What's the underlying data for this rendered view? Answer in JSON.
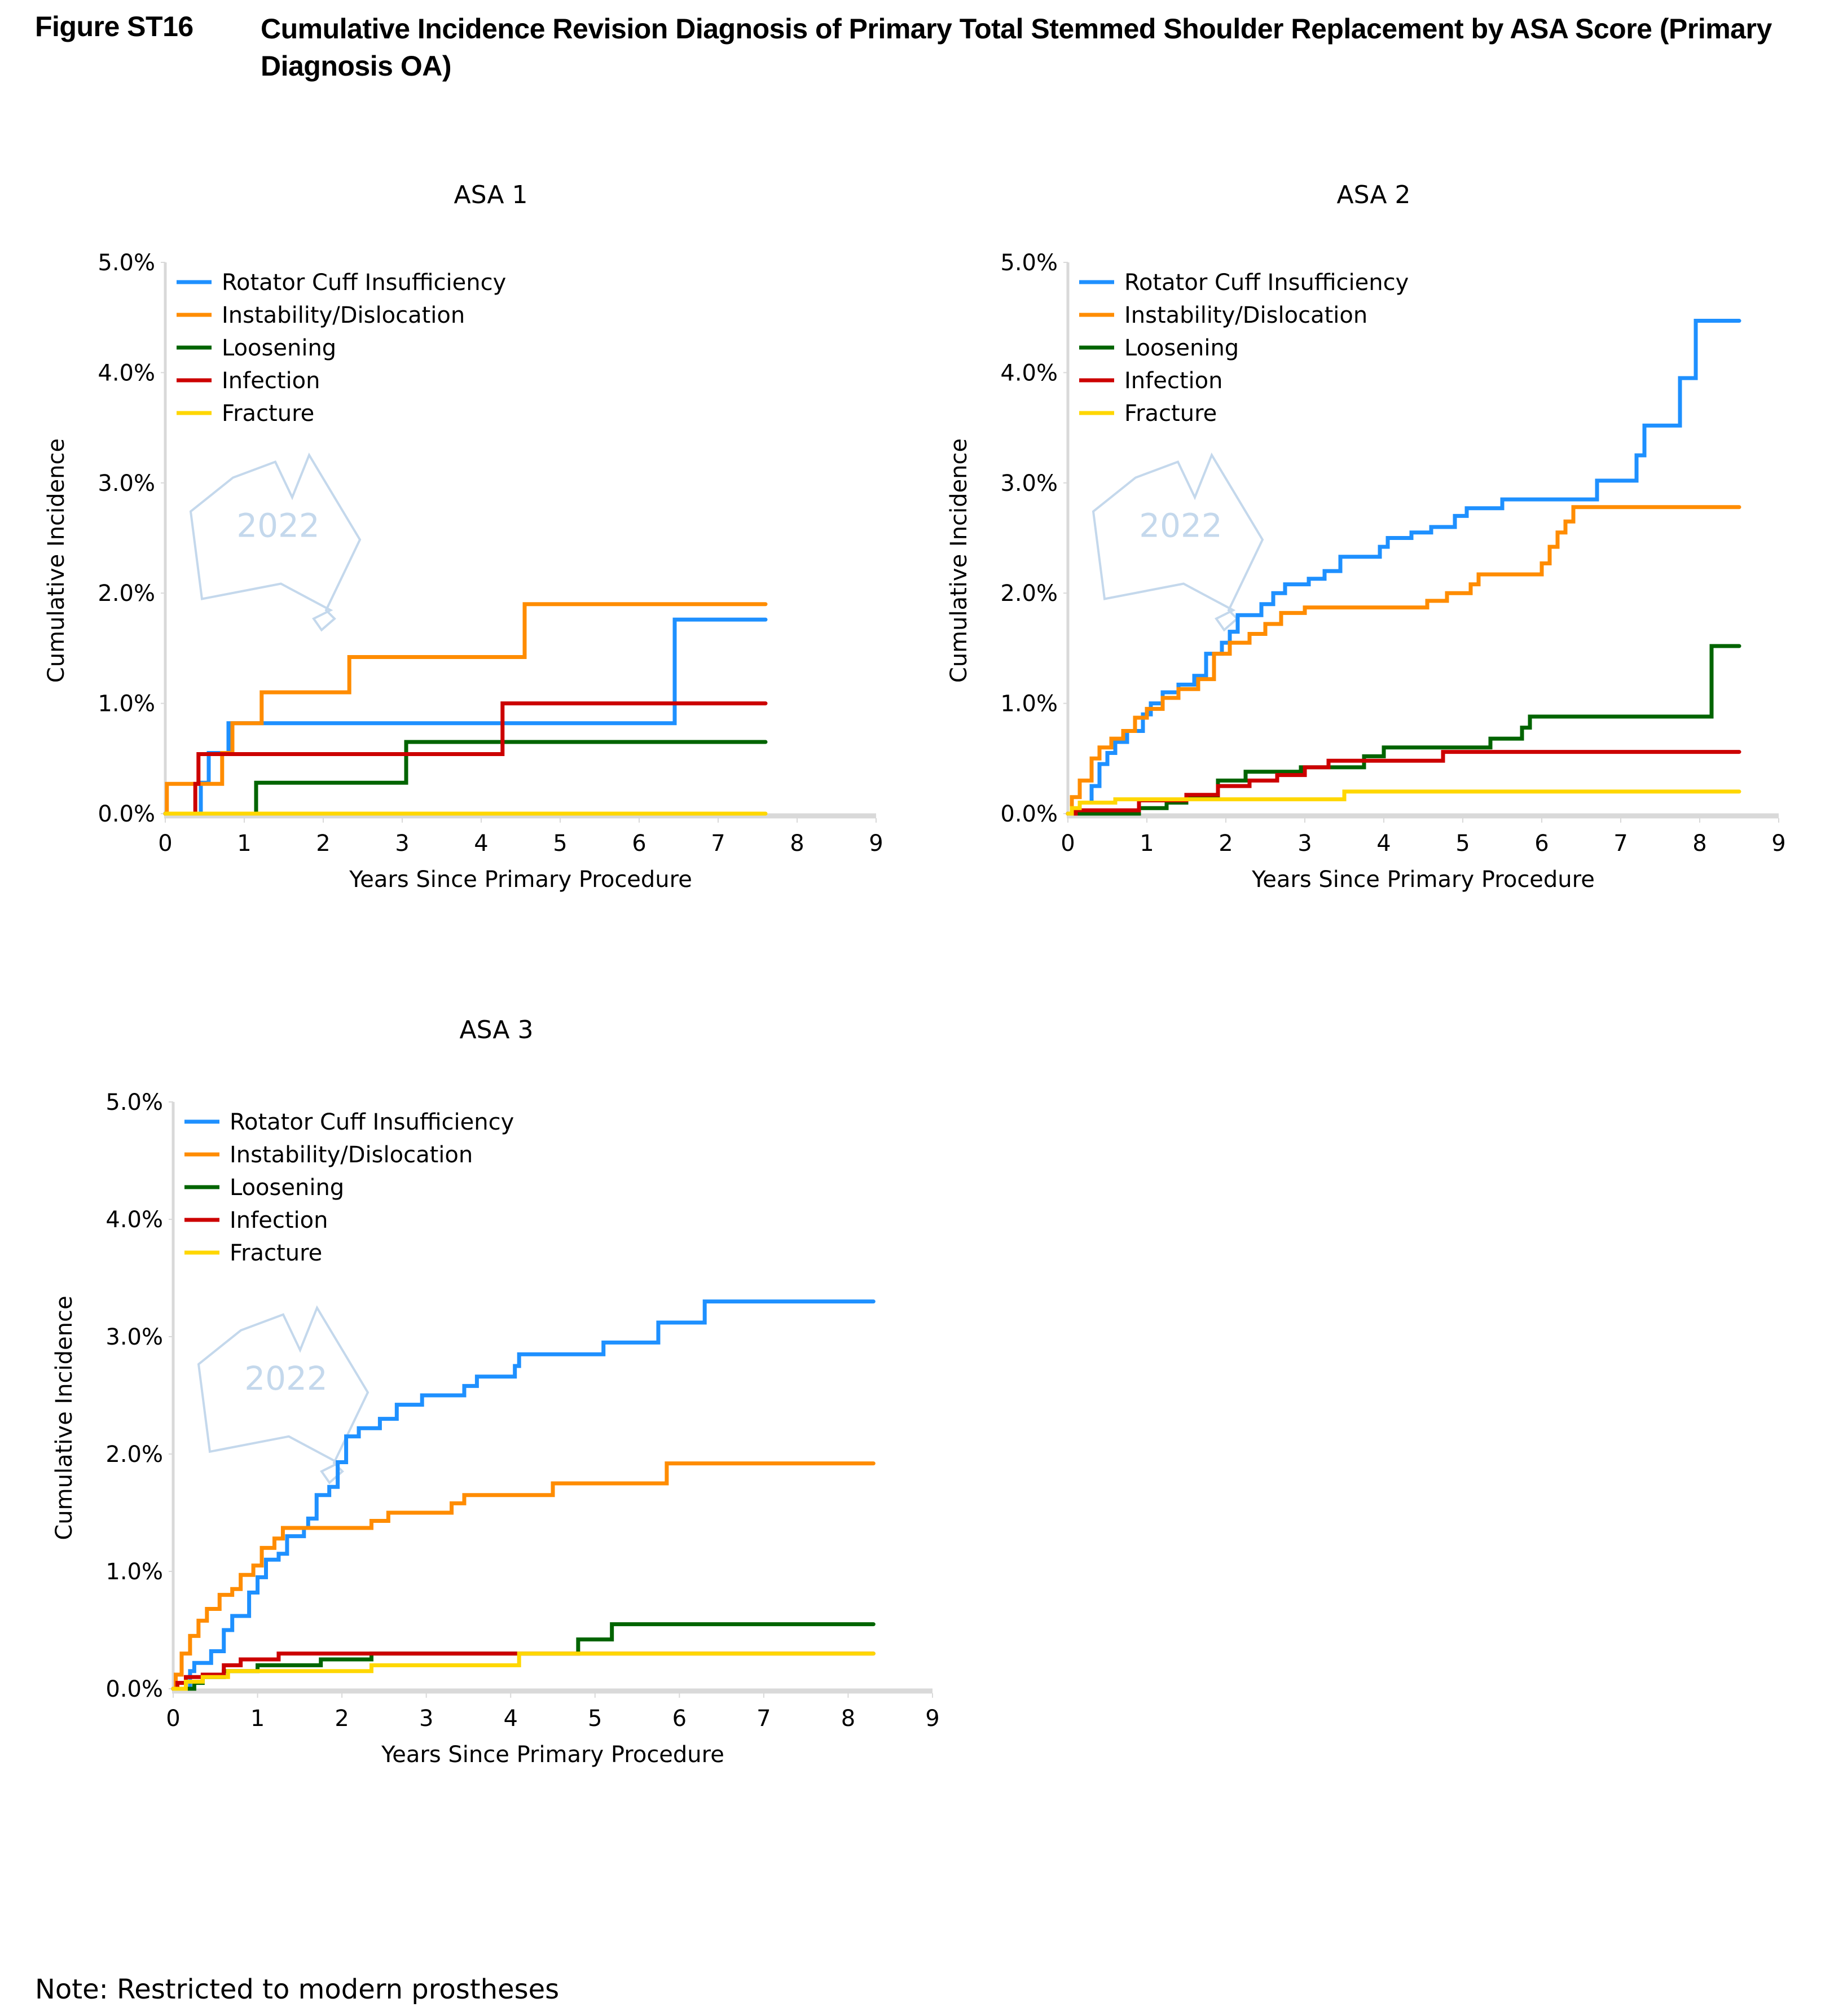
{
  "figure": {
    "label": "Figure ST16",
    "title": "Cumulative Incidence Revision Diagnosis of Primary Total Stemmed Shoulder Replacement by ASA Score (Primary Diagnosis OA)",
    "note": "Note: Restricted to modern prostheses",
    "watermark": "2022"
  },
  "colors": {
    "Rotator Cuff Insufficiency": "#1e90ff",
    "Instability/Dislocation": "#ff8c00",
    "Loosening": "#006400",
    "Infection": "#cc0000",
    "Fracture": "#ffd700"
  },
  "chart_data": [
    {
      "type": "line",
      "step": true,
      "title": "ASA 1",
      "xlabel": "Years Since Primary Procedure",
      "ylabel": "Cumulative Incidence",
      "xlim": [
        0,
        9
      ],
      "ylim": [
        0,
        5
      ],
      "xticks": [
        "0",
        "1",
        "2",
        "3",
        "4",
        "5",
        "6",
        "7",
        "8",
        "9"
      ],
      "yticks": [
        "0.0%",
        "1.0%",
        "2.0%",
        "3.0%",
        "4.0%",
        "5.0%"
      ],
      "legend": "top-left",
      "grid": false,
      "series": [
        {
          "name": "Rotator Cuff Insufficiency",
          "x": [
            0,
            0.45,
            0.55,
            0.8,
            6.45,
            7.6
          ],
          "y": [
            0,
            0.28,
            0.55,
            0.82,
            1.76,
            1.76
          ]
        },
        {
          "name": "Instability/Dislocation",
          "x": [
            0,
            0.02,
            0.72,
            0.85,
            1.22,
            2.33,
            4.55,
            7.6
          ],
          "y": [
            0,
            0.27,
            0.55,
            0.82,
            1.1,
            1.42,
            1.9,
            1.9
          ]
        },
        {
          "name": "Loosening",
          "x": [
            0,
            1.15,
            3.05,
            7.6
          ],
          "y": [
            0,
            0.28,
            0.65,
            0.65
          ]
        },
        {
          "name": "Infection",
          "x": [
            0,
            0.38,
            0.42,
            4.27,
            7.6
          ],
          "y": [
            0,
            0.27,
            0.54,
            1.0,
            1.0
          ]
        },
        {
          "name": "Fracture",
          "x": [
            0,
            7.6
          ],
          "y": [
            0,
            0
          ]
        }
      ]
    },
    {
      "type": "line",
      "step": true,
      "title": "ASA 2",
      "xlabel": "Years Since Primary Procedure",
      "ylabel": "Cumulative Incidence",
      "xlim": [
        0,
        9
      ],
      "ylim": [
        0,
        5
      ],
      "xticks": [
        "0",
        "1",
        "2",
        "3",
        "4",
        "5",
        "6",
        "7",
        "8",
        "9"
      ],
      "yticks": [
        "0.0%",
        "1.0%",
        "2.0%",
        "3.0%",
        "4.0%",
        "5.0%"
      ],
      "legend": "top-left",
      "grid": false,
      "series": [
        {
          "name": "Rotator Cuff Insufficiency",
          "x": [
            0,
            0.15,
            0.3,
            0.4,
            0.5,
            0.6,
            0.75,
            0.95,
            1.05,
            1.2,
            1.4,
            1.6,
            1.75,
            1.95,
            2.05,
            2.15,
            2.45,
            2.6,
            2.75,
            3.05,
            3.25,
            3.45,
            3.95,
            4.05,
            4.35,
            4.6,
            4.9,
            5.05,
            5.5,
            6.7,
            7.2,
            7.3,
            7.75,
            7.95,
            8.5
          ],
          "y": [
            0,
            0.1,
            0.25,
            0.45,
            0.55,
            0.65,
            0.75,
            0.9,
            1.0,
            1.1,
            1.17,
            1.25,
            1.45,
            1.55,
            1.65,
            1.8,
            1.9,
            2.0,
            2.08,
            2.13,
            2.2,
            2.33,
            2.42,
            2.5,
            2.55,
            2.6,
            2.7,
            2.77,
            2.85,
            3.02,
            3.25,
            3.52,
            3.95,
            4.47,
            4.47
          ],
          "step_note": "approx"
        },
        {
          "name": "Instability/Dislocation",
          "x": [
            0,
            0.05,
            0.15,
            0.3,
            0.4,
            0.55,
            0.7,
            0.85,
            1.0,
            1.2,
            1.4,
            1.65,
            1.85,
            2.05,
            2.3,
            2.5,
            2.7,
            3.0,
            4.55,
            4.8,
            5.1,
            5.2,
            6.0,
            6.1,
            6.2,
            6.3,
            6.4,
            8.5
          ],
          "y": [
            0,
            0.15,
            0.3,
            0.5,
            0.6,
            0.68,
            0.75,
            0.87,
            0.95,
            1.05,
            1.13,
            1.22,
            1.45,
            1.55,
            1.63,
            1.72,
            1.82,
            1.87,
            1.93,
            2.0,
            2.08,
            2.17,
            2.27,
            2.42,
            2.55,
            2.65,
            2.78,
            2.78
          ]
        },
        {
          "name": "Loosening",
          "x": [
            0,
            0.9,
            1.25,
            1.5,
            1.9,
            2.25,
            2.95,
            3.75,
            4.0,
            5.35,
            5.75,
            5.85,
            8.15,
            8.5
          ],
          "y": [
            0,
            0.05,
            0.1,
            0.15,
            0.3,
            0.38,
            0.42,
            0.52,
            0.6,
            0.68,
            0.78,
            0.88,
            1.52,
            1.52
          ]
        },
        {
          "name": "Infection",
          "x": [
            0,
            0.1,
            0.9,
            1.5,
            1.9,
            2.3,
            2.65,
            3.0,
            3.3,
            4.75,
            8.5
          ],
          "y": [
            0,
            0.03,
            0.12,
            0.17,
            0.25,
            0.3,
            0.35,
            0.42,
            0.48,
            0.56,
            0.56
          ]
        },
        {
          "name": "Fracture",
          "x": [
            0,
            0.05,
            0.15,
            0.6,
            3.5,
            8.5
          ],
          "y": [
            0,
            0.05,
            0.1,
            0.13,
            0.2,
            0.2
          ]
        }
      ]
    },
    {
      "type": "line",
      "step": true,
      "title": "ASA 3",
      "xlabel": "Years Since Primary Procedure",
      "ylabel": "Cumulative Incidence",
      "xlim": [
        0,
        9
      ],
      "ylim": [
        0,
        5
      ],
      "xticks": [
        "0",
        "1",
        "2",
        "3",
        "4",
        "5",
        "6",
        "7",
        "8",
        "9"
      ],
      "yticks": [
        "0.0%",
        "1.0%",
        "2.0%",
        "3.0%",
        "4.0%",
        "5.0%"
      ],
      "legend": "top-left",
      "grid": false,
      "series": [
        {
          "name": "Rotator Cuff Insufficiency",
          "x": [
            0,
            0.2,
            0.25,
            0.45,
            0.6,
            0.7,
            0.9,
            1.0,
            1.1,
            1.25,
            1.35,
            1.55,
            1.6,
            1.7,
            1.85,
            1.95,
            2.05,
            2.2,
            2.45,
            2.65,
            2.95,
            3.45,
            3.6,
            4.05,
            4.1,
            5.1,
            5.75,
            6.3,
            8.3
          ],
          "y": [
            0,
            0.15,
            0.22,
            0.32,
            0.5,
            0.62,
            0.82,
            0.95,
            1.1,
            1.15,
            1.3,
            1.37,
            1.45,
            1.65,
            1.72,
            1.93,
            2.15,
            2.22,
            2.3,
            2.42,
            2.5,
            2.58,
            2.66,
            2.75,
            2.85,
            2.95,
            3.12,
            3.3,
            3.3
          ]
        },
        {
          "name": "Instability/Dislocation",
          "x": [
            0,
            0.03,
            0.1,
            0.2,
            0.3,
            0.4,
            0.55,
            0.7,
            0.8,
            0.95,
            1.05,
            1.2,
            1.3,
            2.35,
            2.55,
            3.3,
            3.45,
            4.5,
            5.85,
            8.3
          ],
          "y": [
            0,
            0.12,
            0.3,
            0.45,
            0.58,
            0.68,
            0.8,
            0.85,
            0.97,
            1.05,
            1.2,
            1.28,
            1.37,
            1.43,
            1.5,
            1.58,
            1.65,
            1.75,
            1.92,
            1.92
          ]
        },
        {
          "name": "Loosening",
          "x": [
            0,
            0.25,
            0.35,
            0.6,
            1.0,
            1.75,
            2.35,
            4.8,
            5.2,
            8.3
          ],
          "y": [
            0,
            0.05,
            0.1,
            0.15,
            0.2,
            0.25,
            0.3,
            0.42,
            0.55,
            0.55
          ]
        },
        {
          "name": "Infection",
          "x": [
            0,
            0.05,
            0.15,
            0.35,
            0.6,
            0.8,
            1.25,
            4.1,
            8.3
          ],
          "y": [
            0,
            0.05,
            0.1,
            0.12,
            0.2,
            0.25,
            0.3,
            0.3,
            0.3
          ]
        },
        {
          "name": "Fracture",
          "x": [
            0,
            0.15,
            0.35,
            0.65,
            2.35,
            4.1,
            8.3
          ],
          "y": [
            0,
            0.06,
            0.1,
            0.15,
            0.2,
            0.3,
            0.3
          ]
        }
      ]
    }
  ]
}
